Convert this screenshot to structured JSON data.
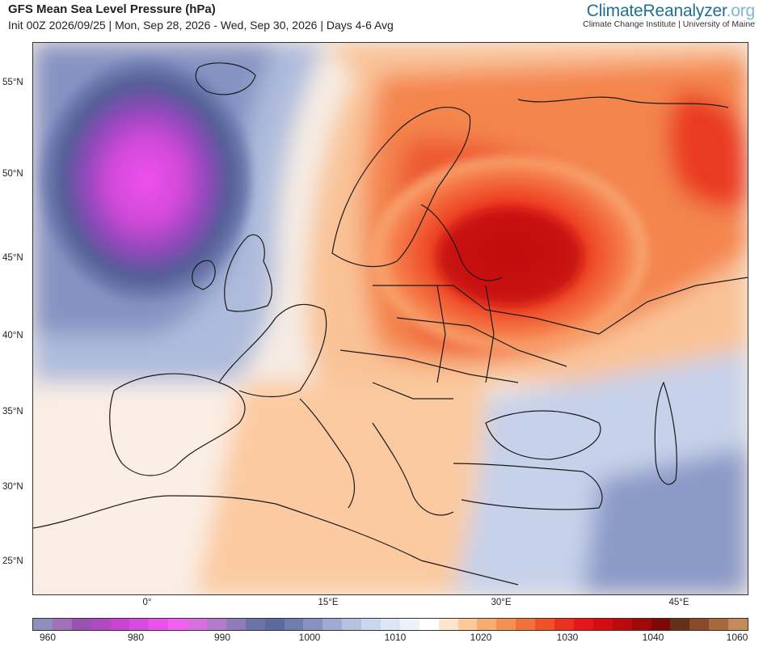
{
  "header": {
    "title": "GFS Mean Sea Level Pressure (hPa)",
    "subtitle": "Init 00Z 2026/09/25 | Mon, Sep 28, 2026 - Wed, Sep 30, 2026 | Days 4-6 Avg"
  },
  "brand": {
    "name_part1": "Climate",
    "name_part2": "Reanalyzer",
    "name_part3": ".org",
    "tagline": "Climate Change Institute | University of Maine"
  },
  "map": {
    "lat_labels": [
      "55°N",
      "50°N",
      "45°N",
      "40°N",
      "35°N",
      "30°N",
      "25°N"
    ],
    "lon_labels": [
      "0°",
      "15°E",
      "30°E",
      "45°E"
    ],
    "low_center_value_hpa": 975,
    "high_center_value_hpa": 1035
  },
  "colorbar": {
    "labels": [
      "960",
      "980",
      "990",
      "1000",
      "1010",
      "1020",
      "1030",
      "1040",
      "1060"
    ],
    "colors": [
      "#8f8fbf",
      "#a070b8",
      "#9a52b0",
      "#b04ac2",
      "#c844d2",
      "#d84be0",
      "#ea52ee",
      "#f260f2",
      "#d86ee0",
      "#b47acc",
      "#8e7cbc",
      "#6a74aa",
      "#5a6aa0",
      "#6e7cb0",
      "#8592c2",
      "#9eaad2",
      "#b6c2e0",
      "#cad6ec",
      "#dde6f4",
      "#edf2fa",
      "#ffffff",
      "#fde4cc",
      "#fbc99a",
      "#f8ad70",
      "#f58f52",
      "#f2703a",
      "#ef5028",
      "#eb3020",
      "#e6161a",
      "#d40e10",
      "#bc0a0c",
      "#a0080a",
      "#800708",
      "#663018",
      "#8a4a2a",
      "#a8683e",
      "#c48a58"
    ]
  }
}
